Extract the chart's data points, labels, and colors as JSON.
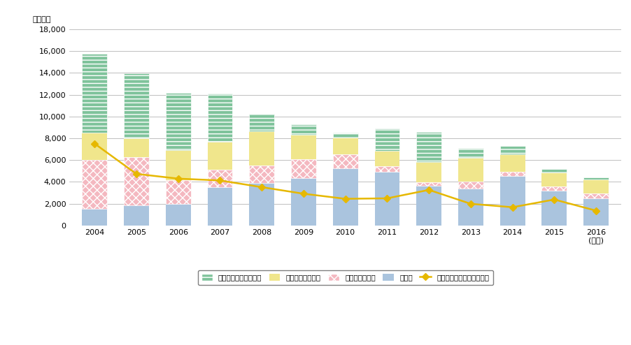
{
  "years": [
    "2004",
    "2005",
    "2006",
    "2007",
    "2008",
    "2009",
    "2010",
    "2011",
    "2012",
    "2013",
    "2014",
    "2015",
    "2016\n(年度)"
  ],
  "personal": [
    7249,
    5995,
    5274,
    4424,
    1617,
    920,
    479,
    2081,
    2788,
    865,
    784,
    265,
    245
  ],
  "amateur": [
    2487,
    1695,
    2764,
    2549,
    3097,
    2283,
    1525,
    1367,
    1803,
    2225,
    1592,
    1291,
    1229
  ],
  "citizen": [
    4503,
    4398,
    2162,
    1583,
    1592,
    1729,
    1295,
    538,
    342,
    642,
    404,
    375,
    478
  ],
  "other": [
    1526,
    1878,
    1968,
    3527,
    3926,
    4338,
    5239,
    4917,
    3648,
    3369,
    4541,
    3221,
    2489
  ],
  "measures": [
    7511,
    4737,
    4301,
    4135,
    3520,
    2918,
    2452,
    2496,
    3269,
    1992,
    1680,
    2386,
    1364
  ],
  "color_personal": "#7fc39b",
  "color_amateur": "#f0e68c",
  "color_citizen": "#f4b8c0",
  "color_other": "#aac4de",
  "color_measures": "#e6b800",
  "ylim": [
    0,
    18000
  ],
  "yticks": [
    0,
    2000,
    4000,
    6000,
    8000,
    10000,
    12000,
    14000,
    16000,
    18000
  ],
  "ylabel": "（件数）",
  "legend_personal": "不法パーソナル無線局",
  "legend_amateur": "不法アマチュア局",
  "legend_citizen": "不法市民ラジオ",
  "legend_other": "その他",
  "legend_measures": "不法無線局の措置件数合計"
}
